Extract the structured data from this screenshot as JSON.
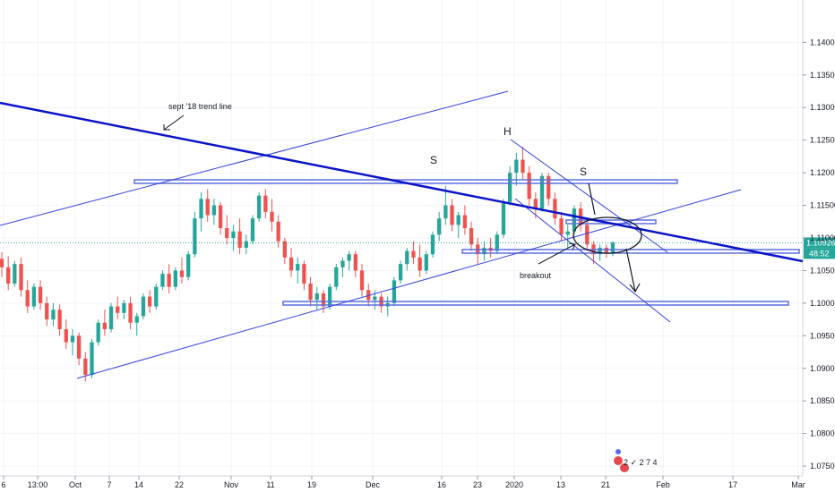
{
  "chart_data": {
    "type": "candlestick",
    "instrument_timeframe": "daily",
    "y_axis": {
      "range": [
        1.0735,
        1.1465
      ],
      "tick_labels": [
        "1.14000",
        "1.13500",
        "1.13000",
        "1.12500",
        "1.12000",
        "1.11500",
        "1.11000",
        "1.10500",
        "1.10000",
        "1.09500",
        "1.09000",
        "1.08500",
        "1.08000",
        "1.07500"
      ],
      "tick_values": [
        1.14,
        1.135,
        1.13,
        1.125,
        1.12,
        1.115,
        1.11,
        1.105,
        1.1,
        1.095,
        1.09,
        1.085,
        1.08,
        1.075
      ]
    },
    "x_axis": {
      "tick_labels": [
        "6",
        "13:00",
        "Oct",
        "7",
        "14",
        "22",
        "Nov",
        "11",
        "19",
        "Dec",
        "16",
        "23",
        "2020",
        "13",
        "21",
        "Feb",
        "17",
        "Mar"
      ]
    },
    "current_price": {
      "label": "1.10926",
      "value": 1.10926,
      "countdown": "48:52"
    },
    "up_color": "#26a69a",
    "down_color": "#ef5350",
    "line_color": "#0a14c8",
    "candles_ohlc": [
      [
        1.1068,
        1.1078,
        1.104,
        1.1055
      ],
      [
        1.1055,
        1.1072,
        1.102,
        1.103
      ],
      [
        1.103,
        1.1065,
        1.1025,
        1.106
      ],
      [
        1.106,
        1.107,
        1.101,
        1.102
      ],
      [
        1.102,
        1.1035,
        1.0985,
        1.0995
      ],
      [
        1.0995,
        1.103,
        1.099,
        1.1025
      ],
      [
        1.1025,
        1.1035,
        1.099,
        1.1
      ],
      [
        1.1,
        1.101,
        1.0965,
        1.0975
      ],
      [
        1.0975,
        1.1,
        1.0965,
        1.099
      ],
      [
        1.099,
        1.0998,
        1.095,
        1.096
      ],
      [
        1.096,
        1.0975,
        1.093,
        1.094
      ],
      [
        1.094,
        1.096,
        1.092,
        1.095
      ],
      [
        1.095,
        1.0955,
        1.0905,
        1.0915
      ],
      [
        1.0915,
        1.0925,
        1.088,
        1.089
      ],
      [
        1.089,
        1.0945,
        1.0885,
        1.094
      ],
      [
        1.094,
        1.0975,
        1.0935,
        1.097
      ],
      [
        1.097,
        1.099,
        1.095,
        1.096
      ],
      [
        1.096,
        1.1,
        1.0955,
        1.0995
      ],
      [
        1.0995,
        1.101,
        1.0975,
        1.0985
      ],
      [
        1.0985,
        1.1005,
        1.0975,
        1.1
      ],
      [
        1.1,
        1.101,
        1.096,
        1.097
      ],
      [
        1.097,
        1.0985,
        1.095,
        1.098
      ],
      [
        1.098,
        1.1015,
        1.0975,
        1.101
      ],
      [
        1.101,
        1.102,
        1.0985,
        1.0995
      ],
      [
        1.0995,
        1.103,
        1.099,
        1.1025
      ],
      [
        1.1025,
        1.105,
        1.102,
        1.1045
      ],
      [
        1.1045,
        1.106,
        1.1015,
        1.1025
      ],
      [
        1.1025,
        1.1055,
        1.102,
        1.105
      ],
      [
        1.105,
        1.107,
        1.103,
        1.104
      ],
      [
        1.104,
        1.108,
        1.1035,
        1.1075
      ],
      [
        1.1075,
        1.114,
        1.107,
        1.113
      ],
      [
        1.113,
        1.117,
        1.111,
        1.116
      ],
      [
        1.116,
        1.1175,
        1.1125,
        1.1135
      ],
      [
        1.1135,
        1.116,
        1.112,
        1.115
      ],
      [
        1.115,
        1.1155,
        1.1105,
        1.1115
      ],
      [
        1.1115,
        1.1135,
        1.109,
        1.11
      ],
      [
        1.11,
        1.112,
        1.108,
        1.111
      ],
      [
        1.111,
        1.113,
        1.1075,
        1.1085
      ],
      [
        1.1085,
        1.1105,
        1.1075,
        1.1095
      ],
      [
        1.1095,
        1.1135,
        1.109,
        1.113
      ],
      [
        1.113,
        1.117,
        1.1125,
        1.1165
      ],
      [
        1.1165,
        1.1175,
        1.113,
        1.114
      ],
      [
        1.114,
        1.116,
        1.111,
        1.1125
      ],
      [
        1.1125,
        1.1135,
        1.1085,
        1.1095
      ],
      [
        1.1095,
        1.11,
        1.106,
        1.107
      ],
      [
        1.107,
        1.1085,
        1.104,
        1.105
      ],
      [
        1.105,
        1.107,
        1.103,
        1.106
      ],
      [
        1.106,
        1.1065,
        1.102,
        1.103
      ],
      [
        1.103,
        1.104,
        1.0995,
        1.1005
      ],
      [
        1.1005,
        1.1025,
        1.099,
        1.1015
      ],
      [
        1.1015,
        1.102,
        1.0985,
        1.0995
      ],
      [
        1.0995,
        1.103,
        1.099,
        1.1025
      ],
      [
        1.1025,
        1.106,
        1.102,
        1.1055
      ],
      [
        1.1055,
        1.107,
        1.104,
        1.1065
      ],
      [
        1.1065,
        1.108,
        1.105,
        1.1075
      ],
      [
        1.1075,
        1.108,
        1.104,
        1.105
      ],
      [
        1.105,
        1.106,
        1.101,
        1.102
      ],
      [
        1.102,
        1.103,
        1.0995,
        1.1005
      ],
      [
        1.1005,
        1.102,
        1.099,
        1.101
      ],
      [
        1.101,
        1.1015,
        1.0985,
        1.0995
      ],
      [
        1.0995,
        1.101,
        1.098,
        1.1
      ],
      [
        1.1,
        1.104,
        1.0995,
        1.1035
      ],
      [
        1.1035,
        1.1065,
        1.103,
        1.106
      ],
      [
        1.106,
        1.1085,
        1.105,
        1.108
      ],
      [
        1.108,
        1.1095,
        1.106,
        1.107
      ],
      [
        1.107,
        1.109,
        1.104,
        1.105
      ],
      [
        1.105,
        1.108,
        1.1045,
        1.1075
      ],
      [
        1.1075,
        1.111,
        1.107,
        1.1105
      ],
      [
        1.1105,
        1.114,
        1.1095,
        1.113
      ],
      [
        1.113,
        1.118,
        1.112,
        1.115
      ],
      [
        1.115,
        1.116,
        1.111,
        1.112
      ],
      [
        1.112,
        1.114,
        1.11,
        1.1135
      ],
      [
        1.1135,
        1.115,
        1.1105,
        1.1115
      ],
      [
        1.1115,
        1.1125,
        1.108,
        1.109
      ],
      [
        1.109,
        1.11,
        1.106,
        1.1075
      ],
      [
        1.1075,
        1.1095,
        1.1065,
        1.1085
      ],
      [
        1.1085,
        1.11,
        1.107,
        1.108
      ],
      [
        1.108,
        1.111,
        1.1075,
        1.1105
      ],
      [
        1.1105,
        1.116,
        1.11,
        1.1155
      ],
      [
        1.1155,
        1.121,
        1.115,
        1.12
      ],
      [
        1.12,
        1.123,
        1.118,
        1.122
      ],
      [
        1.122,
        1.124,
        1.119,
        1.12
      ],
      [
        1.12,
        1.121,
        1.115,
        1.116
      ],
      [
        1.116,
        1.117,
        1.113,
        1.1145
      ],
      [
        1.1145,
        1.12,
        1.114,
        1.1195
      ],
      [
        1.1195,
        1.12,
        1.115,
        1.116
      ],
      [
        1.116,
        1.117,
        1.112,
        1.113
      ],
      [
        1.113,
        1.114,
        1.1095,
        1.1105
      ],
      [
        1.1105,
        1.112,
        1.1085,
        1.111
      ],
      [
        1.111,
        1.115,
        1.1105,
        1.1145
      ],
      [
        1.1145,
        1.1155,
        1.111,
        1.112
      ],
      [
        1.112,
        1.113,
        1.108,
        1.109
      ],
      [
        1.109,
        1.1095,
        1.106,
        1.1075
      ],
      [
        1.1075,
        1.109,
        1.1065,
        1.1085
      ],
      [
        1.1085,
        1.109,
        1.107,
        1.1078
      ],
      [
        1.1078,
        1.1095,
        1.1072,
        1.1093
      ]
    ]
  },
  "annotations": {
    "trend_line_label": "sept '18 trend line",
    "left_shoulder": "S",
    "head": "H",
    "right_shoulder": "S",
    "breakout": "breakout"
  },
  "logo_text": "2 ✓ 2 7 4"
}
